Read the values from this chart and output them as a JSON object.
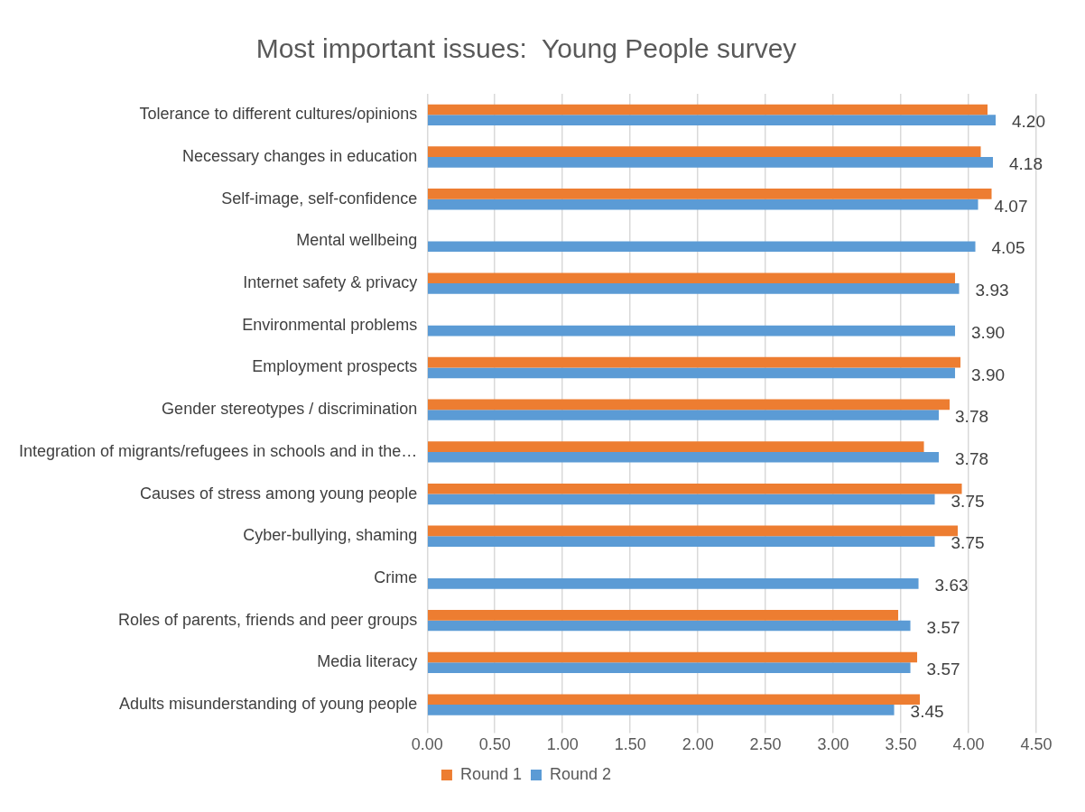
{
  "chart_data": {
    "type": "bar",
    "orientation": "horizontal",
    "title": "Most important issues:  Young People survey",
    "categories": [
      "Tolerance to different cultures/opinions",
      "Necessary changes in education",
      "Self-image, self-confidence",
      "Mental wellbeing",
      "Internet safety & privacy",
      "Environmental problems",
      "Employment prospects",
      "Gender stereotypes / discrimination",
      "Integration of migrants/refugees in schools and in the…",
      "Causes of stress among young people",
      "Cyber-bullying, shaming",
      "Crime",
      "Roles of parents, friends and peer groups",
      "Media literacy",
      "Adults misunderstanding of young people"
    ],
    "series": [
      {
        "name": "Round 1",
        "color": "#ed7d31",
        "values": [
          4.14,
          4.09,
          4.17,
          null,
          3.9,
          null,
          3.94,
          3.86,
          3.67,
          3.95,
          3.92,
          null,
          3.48,
          3.62,
          3.64
        ]
      },
      {
        "name": "Round 2",
        "color": "#5b9bd5",
        "values": [
          4.2,
          4.18,
          4.07,
          4.05,
          3.93,
          3.9,
          3.9,
          3.78,
          3.78,
          3.75,
          3.75,
          3.63,
          3.57,
          3.57,
          3.45
        ],
        "value_labels": [
          "4.20",
          "4.18",
          "4.07",
          "4.05",
          "3.93",
          "3.90",
          "3.90",
          "3.78",
          "3.78",
          "3.75",
          "3.75",
          "3.63",
          "3.57",
          "3.57",
          "3.45"
        ]
      }
    ],
    "xlim": [
      0,
      4.5
    ],
    "xticks": [
      {
        "value": 0,
        "label": "0.00"
      },
      {
        "value": 0.5,
        "label": "0.50"
      },
      {
        "value": 1,
        "label": "1.00"
      },
      {
        "value": 1.5,
        "label": "1.50"
      },
      {
        "value": 2,
        "label": "2.00"
      },
      {
        "value": 2.5,
        "label": "2.50"
      },
      {
        "value": 3,
        "label": "3.00"
      },
      {
        "value": 3.5,
        "label": "3.50"
      },
      {
        "value": 4,
        "label": "4.00"
      },
      {
        "value": 4.5,
        "label": "4.50"
      }
    ],
    "grid": "x",
    "legend": "bottom"
  }
}
